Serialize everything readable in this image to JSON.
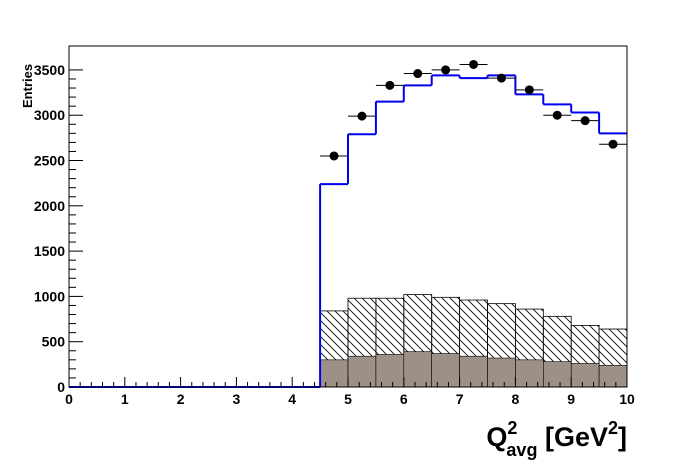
{
  "chart_data": {
    "type": "histogram",
    "y_label": "Entries",
    "x_label": {
      "base": "Q",
      "sup": "2",
      "sub": "avg",
      "unit": " [GeV",
      "unit_sup": "2",
      "close": "]"
    },
    "bins": [
      0,
      0.5,
      1,
      1.5,
      2,
      2.5,
      3,
      3.5,
      4,
      4.5,
      5,
      5.5,
      6,
      6.5,
      7,
      7.5,
      8,
      8.5,
      9,
      9.5,
      10
    ],
    "series": [
      {
        "style": "hatched",
        "color": "#000000",
        "values": [
          0,
          0,
          0,
          0,
          0,
          0,
          0,
          0,
          0,
          840,
          980,
          980,
          1020,
          990,
          960,
          920,
          860,
          780,
          680,
          640
        ]
      },
      {
        "style": "filled",
        "color": "#9c9087",
        "values": [
          0,
          0,
          0,
          0,
          0,
          0,
          0,
          0,
          0,
          300,
          340,
          360,
          390,
          370,
          340,
          320,
          300,
          280,
          260,
          240
        ]
      },
      {
        "style": "step",
        "color": "#0000ee",
        "values": [
          0,
          0,
          0,
          0,
          0,
          0,
          0,
          0,
          0,
          2240,
          2790,
          3150,
          3330,
          3440,
          3410,
          3440,
          3230,
          3120,
          3030,
          2800
        ]
      },
      {
        "style": "points",
        "color": "#000000",
        "values": [
          0,
          0,
          0,
          0,
          0,
          0,
          0,
          0,
          0,
          2550,
          2990,
          3330,
          3460,
          3500,
          3560,
          3410,
          3280,
          3000,
          2940,
          2680
        ]
      }
    ],
    "xlim": [
      0,
      10
    ],
    "xticks": [
      0,
      1,
      2,
      3,
      4,
      5,
      6,
      7,
      8,
      9,
      10
    ],
    "ylim": [
      0,
      3764
    ],
    "yticks": [
      0,
      500,
      1000,
      1500,
      2000,
      2500,
      3000,
      3500
    ]
  }
}
